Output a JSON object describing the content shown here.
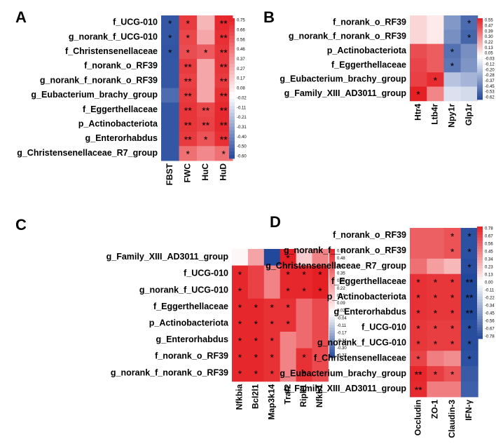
{
  "chart_data": [
    {
      "panel": "A",
      "type": "heatmap",
      "rows": [
        "f_UCG-010",
        "g_norank_f_UCG-010",
        "f_Christensenellaceae",
        "f_norank_o_RF39",
        "g_norank_f_norank_o_RF39",
        "g_Eubacterium_brachy_group",
        "f_Eggerthellaceae",
        "p_Actinobacteriota",
        "g_Enterorhabdus",
        "g_Christensenellaceae_R7_group"
      ],
      "columns": [
        "FBST",
        "FWC",
        "HuC",
        "HuD"
      ],
      "values": [
        [
          -0.55,
          0.66,
          0.25,
          0.72
        ],
        [
          -0.55,
          0.62,
          0.3,
          0.7
        ],
        [
          -0.56,
          0.6,
          0.55,
          0.68
        ],
        [
          -0.55,
          0.66,
          0.3,
          0.68
        ],
        [
          -0.55,
          0.64,
          0.3,
          0.66
        ],
        [
          -0.48,
          0.66,
          0.3,
          0.7
        ],
        [
          -0.55,
          0.68,
          0.62,
          0.72
        ],
        [
          -0.55,
          0.68,
          0.64,
          0.72
        ],
        [
          -0.55,
          0.66,
          0.58,
          0.7
        ],
        [
          -0.55,
          0.48,
          0.4,
          0.48
        ]
      ],
      "stars": [
        [
          "*",
          "*",
          "",
          "**"
        ],
        [
          "*",
          "*",
          "",
          "**"
        ],
        [
          "*",
          "*",
          "*",
          "**"
        ],
        [
          "",
          "**",
          "",
          "**"
        ],
        [
          "",
          "**",
          "",
          "**"
        ],
        [
          "",
          "**",
          "",
          "**"
        ],
        [
          "",
          "**",
          "**",
          "**"
        ],
        [
          "",
          "**",
          "**",
          "**"
        ],
        [
          "",
          "**",
          "*",
          "**"
        ],
        [
          "",
          "*",
          "",
          "*"
        ]
      ],
      "colorbar_ticks": [
        "0.75",
        "0.66",
        "0.56",
        "0.46",
        "0.37",
        "0.27",
        "0.17",
        "0.08",
        "-0.02",
        "-0.11",
        "-0.21",
        "-0.31",
        "-0.40",
        "-0.50",
        "-0.60"
      ],
      "range": [
        -0.6,
        0.75
      ]
    },
    {
      "panel": "B",
      "type": "heatmap",
      "rows": [
        "f_norank_o_RF39",
        "g_norank_f_norank_o_RF39",
        "p_Actinobacteriota",
        "f_Eggerthellaceae",
        "g_Eubacterium_brachy_group",
        "g_Family_XIII_AD3011_group"
      ],
      "columns": [
        "Htr4",
        "Ltb4r",
        "Npy1r",
        "Glp1r"
      ],
      "values": [
        [
          0.1,
          0.05,
          -0.35,
          -0.5
        ],
        [
          0.1,
          0.05,
          -0.38,
          -0.52
        ],
        [
          0.44,
          0.4,
          -0.48,
          -0.38
        ],
        [
          0.46,
          0.4,
          -0.46,
          -0.36
        ],
        [
          0.47,
          0.52,
          -0.2,
          -0.25
        ],
        [
          0.55,
          0.3,
          -0.1,
          -0.12
        ]
      ],
      "stars": [
        [
          "",
          "",
          "",
          "*"
        ],
        [
          "",
          "",
          "",
          "*"
        ],
        [
          "",
          "",
          "*",
          ""
        ],
        [
          "",
          "",
          "*",
          ""
        ],
        [
          "",
          "*",
          "",
          ""
        ],
        [
          "*",
          "",
          "",
          ""
        ]
      ],
      "colorbar_ticks": [
        "0.55",
        "0.47",
        "0.39",
        "0.30",
        "0.22",
        "0.13",
        "0.05",
        "-0.03",
        "-0.12",
        "-0.20",
        "-0.28",
        "-0.37",
        "-0.45",
        "-0.53",
        "-0.62"
      ],
      "range": [
        -0.62,
        0.55
      ]
    },
    {
      "panel": "C",
      "type": "heatmap",
      "rows": [
        "g_Family_XIII_AD3011_group",
        "f_UCG-010",
        "g_norank_f_UCG-010",
        "f_Eggerthellaceae",
        "p_Actinobacteriota",
        "g_Enterorhabdus",
        "f_norank_o_RF39",
        "g_norank_f_norank_o_RF39"
      ],
      "columns": [
        "Nfkbia",
        "Bcl2l1",
        "Map3k14",
        "Traf2",
        "Ripk1",
        "Nfkb1"
      ],
      "values": [
        [
          0.02,
          0.22,
          -0.37,
          0.54,
          0.12,
          0.3
        ],
        [
          0.52,
          0.46,
          0.3,
          0.52,
          0.52,
          0.54
        ],
        [
          0.52,
          0.46,
          0.3,
          0.52,
          0.52,
          0.54
        ],
        [
          0.52,
          0.52,
          0.5,
          0.5,
          0.36,
          0.44
        ],
        [
          0.52,
          0.52,
          0.5,
          0.5,
          0.36,
          0.44
        ],
        [
          0.52,
          0.52,
          0.5,
          0.3,
          0.36,
          0.44
        ],
        [
          0.52,
          0.52,
          0.5,
          0.3,
          0.5,
          0.44
        ],
        [
          0.52,
          0.52,
          0.5,
          0.3,
          0.5,
          0.44
        ]
      ],
      "stars": [
        [
          "",
          "",
          "",
          "*",
          "",
          ""
        ],
        [
          "*",
          "",
          "",
          "*",
          "*",
          "*"
        ],
        [
          "*",
          "",
          "",
          "*",
          "*",
          "*"
        ],
        [
          "*",
          "*",
          "*",
          "*",
          "",
          ""
        ],
        [
          "*",
          "*",
          "*",
          "*",
          "",
          ""
        ],
        [
          "*",
          "*",
          "*",
          "",
          "",
          ""
        ],
        [
          "*",
          "*",
          "*",
          "",
          "*",
          ""
        ],
        [
          "*",
          "*",
          "*",
          "",
          "*",
          ""
        ]
      ],
      "colorbar_ticks": [
        "0.54",
        "0.48",
        "0.41",
        "0.35",
        "0.28",
        "0.22",
        "0.15",
        "0.09",
        "0.02",
        "-0.04",
        "-0.11",
        "-0.17",
        "-0.24",
        "-0.30",
        "-0.37"
      ],
      "range": [
        -0.37,
        0.54
      ]
    },
    {
      "panel": "D",
      "type": "heatmap",
      "rows": [
        "f_norank_o_RF39",
        "g_norank_f__norank_o_RF39",
        "g_Christensenellaceae_R7_group",
        "f_Eggerthellaceae",
        "p_Actinobacteriota",
        "g_Enterorhabdus",
        "f_UCG-010",
        "g_norank_f_UCG-010",
        "f_Christensenellaceae",
        "g_Eubacterium_brachy_group",
        "g_Family_XIII_AD3011_group"
      ],
      "columns": [
        "Occludin",
        "ZO-1",
        "Claudin-3",
        "IFN-γ"
      ],
      "values": [
        [
          0.56,
          0.56,
          0.6,
          -0.74
        ],
        [
          0.56,
          0.56,
          0.6,
          -0.74
        ],
        [
          0.5,
          0.34,
          0.25,
          -0.76
        ],
        [
          0.72,
          0.7,
          0.7,
          -0.78
        ],
        [
          0.72,
          0.7,
          0.7,
          -0.78
        ],
        [
          0.72,
          0.7,
          0.7,
          -0.78
        ],
        [
          0.7,
          0.68,
          0.68,
          -0.76
        ],
        [
          0.7,
          0.68,
          0.68,
          -0.76
        ],
        [
          0.66,
          0.45,
          0.4,
          -0.74
        ],
        [
          0.76,
          0.68,
          0.6,
          -0.7
        ],
        [
          0.74,
          0.45,
          0.45,
          -0.68
        ]
      ],
      "stars": [
        [
          "",
          "",
          "*",
          "*"
        ],
        [
          "",
          "",
          "*",
          "*"
        ],
        [
          "",
          "",
          "",
          "*"
        ],
        [
          "*",
          "*",
          "*",
          "**"
        ],
        [
          "*",
          "*",
          "*",
          "**"
        ],
        [
          "*",
          "*",
          "*",
          "**"
        ],
        [
          "*",
          "*",
          "*",
          "*"
        ],
        [
          "*",
          "*",
          "*",
          "*"
        ],
        [
          "*",
          "",
          "",
          "*"
        ],
        [
          "**",
          "*",
          "*",
          ""
        ],
        [
          "**",
          "",
          "",
          ""
        ]
      ],
      "colorbar_ticks": [
        "0.78",
        "0.67",
        "0.56",
        "0.45",
        "0.34",
        "0.23",
        "0.13",
        "0.00",
        "-0.11",
        "-0.22",
        "-0.34",
        "-0.45",
        "-0.56",
        "-0.67",
        "-0.78"
      ],
      "range": [
        -0.78,
        0.78
      ]
    }
  ]
}
